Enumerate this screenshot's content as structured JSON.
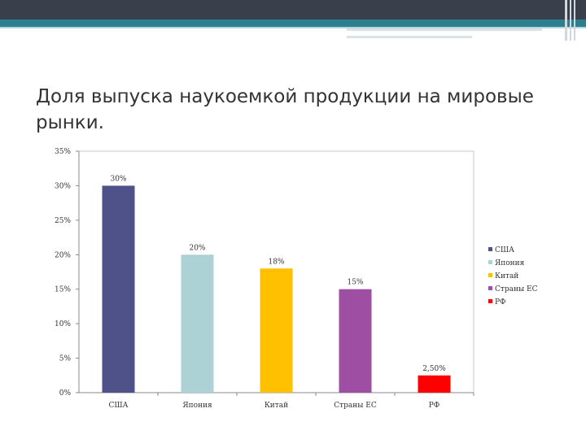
{
  "slide": {
    "title": "Доля выпуска наукоемкой продукции на мировые рынки."
  },
  "chart_data": {
    "type": "bar",
    "title": "",
    "xlabel": "",
    "ylabel": "",
    "ylim": [
      0,
      35
    ],
    "yticks": [
      0,
      5,
      10,
      15,
      20,
      25,
      30,
      35
    ],
    "ytick_labels": [
      "0%",
      "5%",
      "10%",
      "15%",
      "20%",
      "25%",
      "30%",
      "35%"
    ],
    "categories": [
      "США",
      "Япония",
      "Китай",
      "Страны ЕС",
      "РФ"
    ],
    "values": [
      30,
      20,
      18,
      15,
      2.5
    ],
    "data_labels": [
      "30%",
      "20%",
      "18%",
      "15%",
      "2,50%"
    ],
    "colors": [
      "#4f5289",
      "#add2d6",
      "#ffc000",
      "#9e4ea3",
      "#ff0000"
    ],
    "grid": false,
    "legend": {
      "position": "right",
      "entries": [
        "США",
        "Япония",
        "Китай",
        "Страны ЕС",
        "РФ"
      ]
    }
  }
}
